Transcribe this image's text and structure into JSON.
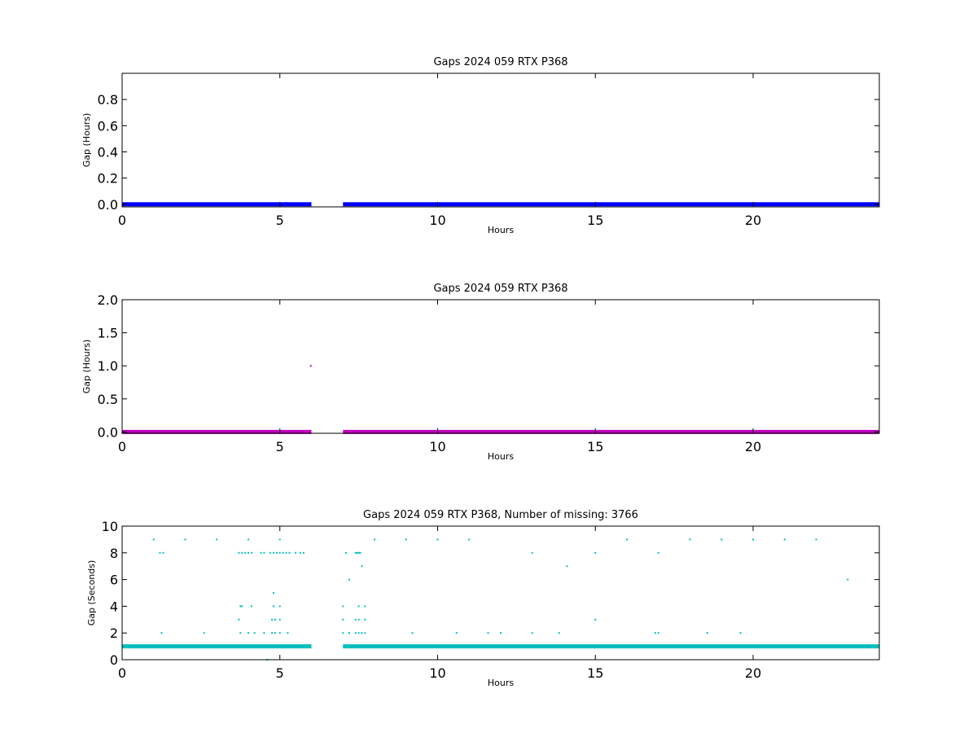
{
  "chart_data": [
    {
      "type": "scatter",
      "title": "Gaps 2024 059 RTX  P368",
      "xlabel": "Hours",
      "ylabel": "Gap (Hours)",
      "xlim": [
        0,
        24
      ],
      "ylim": [
        -0.02,
        1.0
      ],
      "xticks": [
        0,
        5,
        10,
        15,
        20
      ],
      "yticks": [
        0.0,
        0.2,
        0.4,
        0.6,
        0.8
      ],
      "grid": false,
      "color": "#0000ff",
      "series": [
        {
          "dense_segments": [
            {
              "x_start": 0.0,
              "x_end": 6.0,
              "y": 0.0
            },
            {
              "x_start": 7.0,
              "x_end": 24.0,
              "y": 0.0
            }
          ],
          "points": [
            {
              "x": 5.2,
              "y": 0.011
            },
            {
              "x": 22.95,
              "y": 0.006
            }
          ]
        }
      ]
    },
    {
      "type": "scatter",
      "title": "Gaps 2024 059 RTX  P368",
      "xlabel": "Hours",
      "ylabel": "Gap (Hours)",
      "xlim": [
        0,
        24
      ],
      "ylim": [
        -0.02,
        2.0
      ],
      "xticks": [
        0,
        5,
        10,
        15,
        20
      ],
      "yticks": [
        0.0,
        0.5,
        1.0,
        1.5,
        2.0
      ],
      "grid": false,
      "color": "#c000c0",
      "series": [
        {
          "dense_segments": [
            {
              "x_start": 0.0,
              "x_end": 6.0,
              "y": 0.0
            },
            {
              "x_start": 7.0,
              "x_end": 24.0,
              "y": 0.0
            }
          ],
          "points": [
            {
              "x": 5.98,
              "y": 1.0
            }
          ]
        }
      ]
    },
    {
      "type": "scatter",
      "title": "Gaps 2024 059 RTX  P368, Number of missing: 3766",
      "xlabel": "Hours",
      "ylabel": "Gap (Seconds)",
      "xlim": [
        0,
        24
      ],
      "ylim": [
        0,
        10
      ],
      "xticks": [
        0,
        5,
        10,
        15,
        20
      ],
      "yticks": [
        0,
        2,
        4,
        6,
        8,
        10
      ],
      "grid": false,
      "color": "#00bfbf",
      "series": [
        {
          "dense_segments": [
            {
              "x_start": 0.0,
              "x_end": 6.0,
              "y": 1.0
            },
            {
              "x_start": 7.0,
              "x_end": 24.0,
              "y": 1.0
            }
          ],
          "points": [
            {
              "x": 1.0,
              "y": 9
            },
            {
              "x": 2.0,
              "y": 9
            },
            {
              "x": 3.0,
              "y": 9
            },
            {
              "x": 4.0,
              "y": 9
            },
            {
              "x": 5.0,
              "y": 9
            },
            {
              "x": 8.0,
              "y": 9
            },
            {
              "x": 9.0,
              "y": 9
            },
            {
              "x": 10.0,
              "y": 9
            },
            {
              "x": 11.0,
              "y": 9
            },
            {
              "x": 16.0,
              "y": 9
            },
            {
              "x": 18.0,
              "y": 9
            },
            {
              "x": 19.0,
              "y": 9
            },
            {
              "x": 20.0,
              "y": 9
            },
            {
              "x": 21.0,
              "y": 9
            },
            {
              "x": 22.0,
              "y": 9
            },
            {
              "x": 1.2,
              "y": 8
            },
            {
              "x": 1.3,
              "y": 8
            },
            {
              "x": 3.7,
              "y": 8
            },
            {
              "x": 3.8,
              "y": 8
            },
            {
              "x": 3.9,
              "y": 8
            },
            {
              "x": 4.0,
              "y": 8
            },
            {
              "x": 4.1,
              "y": 8
            },
            {
              "x": 4.4,
              "y": 8
            },
            {
              "x": 4.5,
              "y": 8
            },
            {
              "x": 4.7,
              "y": 8
            },
            {
              "x": 4.8,
              "y": 8
            },
            {
              "x": 4.9,
              "y": 8
            },
            {
              "x": 5.0,
              "y": 8
            },
            {
              "x": 5.1,
              "y": 8
            },
            {
              "x": 5.2,
              "y": 8
            },
            {
              "x": 5.3,
              "y": 8
            },
            {
              "x": 5.5,
              "y": 8
            },
            {
              "x": 5.65,
              "y": 8
            },
            {
              "x": 5.75,
              "y": 8
            },
            {
              "x": 7.1,
              "y": 8
            },
            {
              "x": 7.4,
              "y": 8
            },
            {
              "x": 7.45,
              "y": 8
            },
            {
              "x": 7.5,
              "y": 8
            },
            {
              "x": 7.55,
              "y": 8
            },
            {
              "x": 13.0,
              "y": 8
            },
            {
              "x": 15.0,
              "y": 8
            },
            {
              "x": 17.0,
              "y": 8
            },
            {
              "x": 7.6,
              "y": 7
            },
            {
              "x": 14.1,
              "y": 7
            },
            {
              "x": 7.2,
              "y": 6
            },
            {
              "x": 23.0,
              "y": 6
            },
            {
              "x": 4.8,
              "y": 5
            },
            {
              "x": 3.75,
              "y": 4
            },
            {
              "x": 3.8,
              "y": 4
            },
            {
              "x": 4.1,
              "y": 4
            },
            {
              "x": 4.8,
              "y": 4
            },
            {
              "x": 5.0,
              "y": 4
            },
            {
              "x": 7.0,
              "y": 4
            },
            {
              "x": 7.5,
              "y": 4
            },
            {
              "x": 7.7,
              "y": 4
            },
            {
              "x": 3.7,
              "y": 3
            },
            {
              "x": 4.75,
              "y": 3
            },
            {
              "x": 4.85,
              "y": 3
            },
            {
              "x": 5.0,
              "y": 3
            },
            {
              "x": 7.0,
              "y": 3
            },
            {
              "x": 7.4,
              "y": 3
            },
            {
              "x": 7.5,
              "y": 3
            },
            {
              "x": 7.7,
              "y": 3
            },
            {
              "x": 15.0,
              "y": 3
            },
            {
              "x": 1.25,
              "y": 2
            },
            {
              "x": 2.6,
              "y": 2
            },
            {
              "x": 3.75,
              "y": 2
            },
            {
              "x": 4.0,
              "y": 2
            },
            {
              "x": 4.2,
              "y": 2
            },
            {
              "x": 4.5,
              "y": 2
            },
            {
              "x": 4.75,
              "y": 2
            },
            {
              "x": 4.85,
              "y": 2
            },
            {
              "x": 5.0,
              "y": 2
            },
            {
              "x": 5.25,
              "y": 2
            },
            {
              "x": 7.0,
              "y": 2
            },
            {
              "x": 7.2,
              "y": 2
            },
            {
              "x": 7.4,
              "y": 2
            },
            {
              "x": 7.5,
              "y": 2
            },
            {
              "x": 7.6,
              "y": 2
            },
            {
              "x": 7.7,
              "y": 2
            },
            {
              "x": 9.2,
              "y": 2
            },
            {
              "x": 10.6,
              "y": 2
            },
            {
              "x": 11.6,
              "y": 2
            },
            {
              "x": 12.0,
              "y": 2
            },
            {
              "x": 13.0,
              "y": 2
            },
            {
              "x": 13.85,
              "y": 2
            },
            {
              "x": 16.9,
              "y": 2
            },
            {
              "x": 17.0,
              "y": 2
            },
            {
              "x": 18.55,
              "y": 2
            },
            {
              "x": 19.6,
              "y": 2
            },
            {
              "x": 4.6,
              "y": 0
            }
          ]
        }
      ]
    }
  ]
}
